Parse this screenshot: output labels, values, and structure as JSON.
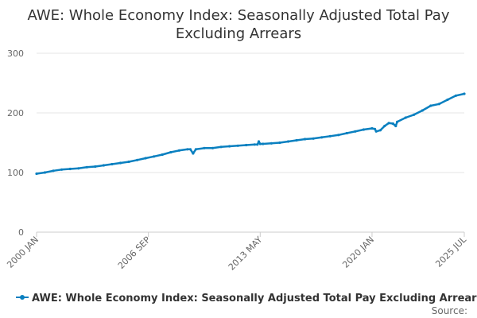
{
  "page": {
    "title_line1": "AWE: Whole Economy Index: Seasonally Adjusted Total Pay",
    "title_line2": "Excluding Arrears",
    "source_label": "Source:"
  },
  "colors": {
    "series": "#0a80c0",
    "grid": "#e6e6e6",
    "axis": "#cccccc",
    "title": "#333333",
    "tick_text": "#666666"
  },
  "chart_data": {
    "type": "line",
    "title": "AWE: Whole Economy Index: Seasonally Adjusted Total Pay Excluding Arrears",
    "xlabel": "",
    "ylabel": "",
    "ylim": [
      0,
      300
    ],
    "yticks": [
      0,
      100,
      200,
      300
    ],
    "xlim": [
      "2000-01",
      "2025-07"
    ],
    "xticks": [
      "2000 JAN",
      "2006 SEP",
      "2013 MAY",
      "2020 JAN",
      "2025 JUL"
    ],
    "grid": true,
    "legend_position": "bottom",
    "series": [
      {
        "name": "AWE: Whole Economy Index: Seasonally Adjusted Total Pay Excluding Arrears",
        "points": [
          [
            "2000-01",
            98
          ],
          [
            "2000-07",
            100
          ],
          [
            "2001-01",
            103
          ],
          [
            "2001-07",
            105
          ],
          [
            "2002-01",
            106
          ],
          [
            "2002-07",
            107
          ],
          [
            "2003-01",
            109
          ],
          [
            "2003-07",
            110
          ],
          [
            "2004-01",
            112
          ],
          [
            "2004-07",
            114
          ],
          [
            "2005-01",
            116
          ],
          [
            "2005-07",
            118
          ],
          [
            "2006-01",
            121
          ],
          [
            "2006-07",
            124
          ],
          [
            "2007-01",
            127
          ],
          [
            "2007-07",
            130
          ],
          [
            "2008-01",
            134
          ],
          [
            "2008-07",
            137
          ],
          [
            "2009-01",
            139
          ],
          [
            "2009-03",
            139
          ],
          [
            "2009-05",
            132
          ],
          [
            "2009-07",
            139
          ],
          [
            "2010-01",
            141
          ],
          [
            "2010-07",
            141
          ],
          [
            "2011-01",
            143
          ],
          [
            "2011-07",
            144
          ],
          [
            "2012-01",
            145
          ],
          [
            "2012-07",
            146
          ],
          [
            "2013-01",
            147
          ],
          [
            "2013-03",
            147
          ],
          [
            "2013-04",
            152
          ],
          [
            "2013-05",
            148
          ],
          [
            "2013-07",
            148
          ],
          [
            "2014-01",
            149
          ],
          [
            "2014-07",
            150
          ],
          [
            "2015-01",
            152
          ],
          [
            "2015-07",
            154
          ],
          [
            "2016-01",
            156
          ],
          [
            "2016-07",
            157
          ],
          [
            "2017-01",
            159
          ],
          [
            "2017-07",
            161
          ],
          [
            "2018-01",
            163
          ],
          [
            "2018-07",
            166
          ],
          [
            "2019-01",
            169
          ],
          [
            "2019-07",
            172
          ],
          [
            "2020-01",
            174
          ],
          [
            "2020-03",
            173
          ],
          [
            "2020-04",
            169
          ],
          [
            "2020-07",
            171
          ],
          [
            "2020-10",
            178
          ],
          [
            "2021-01",
            183
          ],
          [
            "2021-04",
            182
          ],
          [
            "2021-06",
            178
          ],
          [
            "2021-07",
            185
          ],
          [
            "2022-01",
            192
          ],
          [
            "2022-07",
            197
          ],
          [
            "2023-01",
            204
          ],
          [
            "2023-07",
            212
          ],
          [
            "2024-01",
            215
          ],
          [
            "2024-07",
            222
          ],
          [
            "2025-01",
            229
          ],
          [
            "2025-07",
            232
          ]
        ]
      }
    ]
  }
}
